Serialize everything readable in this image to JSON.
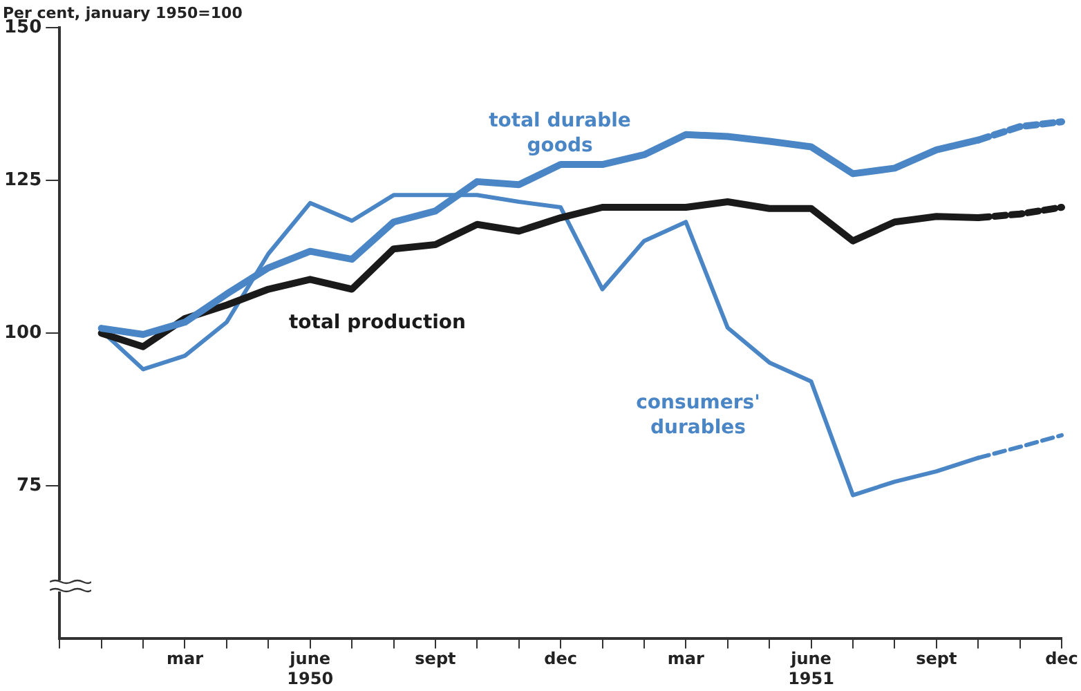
{
  "chart_data": {
    "type": "line",
    "ylabel": "Per cent, january 1950=100",
    "categories": [
      null,
      null,
      null,
      "mar",
      null,
      null,
      "june\n1950",
      null,
      null,
      "sept",
      null,
      null,
      "dec",
      null,
      null,
      "mar",
      null,
      null,
      "june\n1951",
      null,
      null,
      "sept",
      null,
      null,
      "dec"
    ],
    "ylim": [
      50,
      150
    ],
    "yticks": [
      75,
      100,
      125,
      150
    ],
    "grid": false,
    "legend": false,
    "marker": "none",
    "series": [
      {
        "name": "total durable\ngoods",
        "color": "#4a86c5",
        "line_style": "solid",
        "values": [
          null,
          100.8,
          99.8,
          101.8,
          106.4,
          110.7,
          113.4,
          112.1,
          118.2,
          120,
          124.8,
          124.3,
          127.6,
          127.6,
          129.2,
          132.5,
          132.2,
          131.4,
          130.5,
          126.1,
          127,
          130,
          131.6,
          null,
          null
        ]
      },
      {
        "name": "total production",
        "color": "#1a1a1a",
        "line_style": "solid",
        "values": [
          null,
          100,
          97.8,
          102.4,
          104.6,
          107.2,
          108.8,
          107.2,
          113.8,
          114.5,
          117.8,
          116.7,
          118.9,
          120.6,
          120.6,
          120.6,
          121.5,
          120.4,
          120.4,
          115.1,
          118.2,
          119.1,
          118.9,
          null,
          null
        ]
      },
      {
        "name": "consumers'\ndurables",
        "color": "#4a86c5",
        "line_style": "solid",
        "values": [
          null,
          100.4,
          94.1,
          96.3,
          101.8,
          113,
          121.3,
          118.4,
          122.6,
          122.6,
          122.6,
          121.5,
          120.6,
          107.2,
          115.1,
          118.2,
          100.9,
          95.2,
          92.1,
          73.5,
          75.7,
          77.4,
          79.6,
          null,
          null
        ]
      },
      {
        "color": "#4a86c5",
        "line_style": "dashed",
        "values": [
          null,
          null,
          null,
          null,
          null,
          null,
          null,
          null,
          null,
          null,
          null,
          null,
          null,
          null,
          null,
          null,
          null,
          null,
          null,
          null,
          null,
          null,
          131.6,
          133.8,
          134.6
        ]
      },
      {
        "color": "#1a1a1a",
        "line_style": "dashed",
        "values": [
          null,
          null,
          null,
          null,
          null,
          null,
          null,
          null,
          null,
          null,
          null,
          null,
          null,
          null,
          null,
          null,
          null,
          null,
          null,
          null,
          null,
          null,
          118.9,
          119.5,
          120.6
        ]
      },
      {
        "color": "#4a86c5",
        "line_style": "dashed",
        "values": [
          null,
          null,
          null,
          null,
          null,
          null,
          null,
          null,
          null,
          null,
          null,
          null,
          null,
          null,
          null,
          null,
          null,
          null,
          null,
          null,
          null,
          null,
          79.6,
          81.4,
          83.3
        ]
      }
    ]
  }
}
